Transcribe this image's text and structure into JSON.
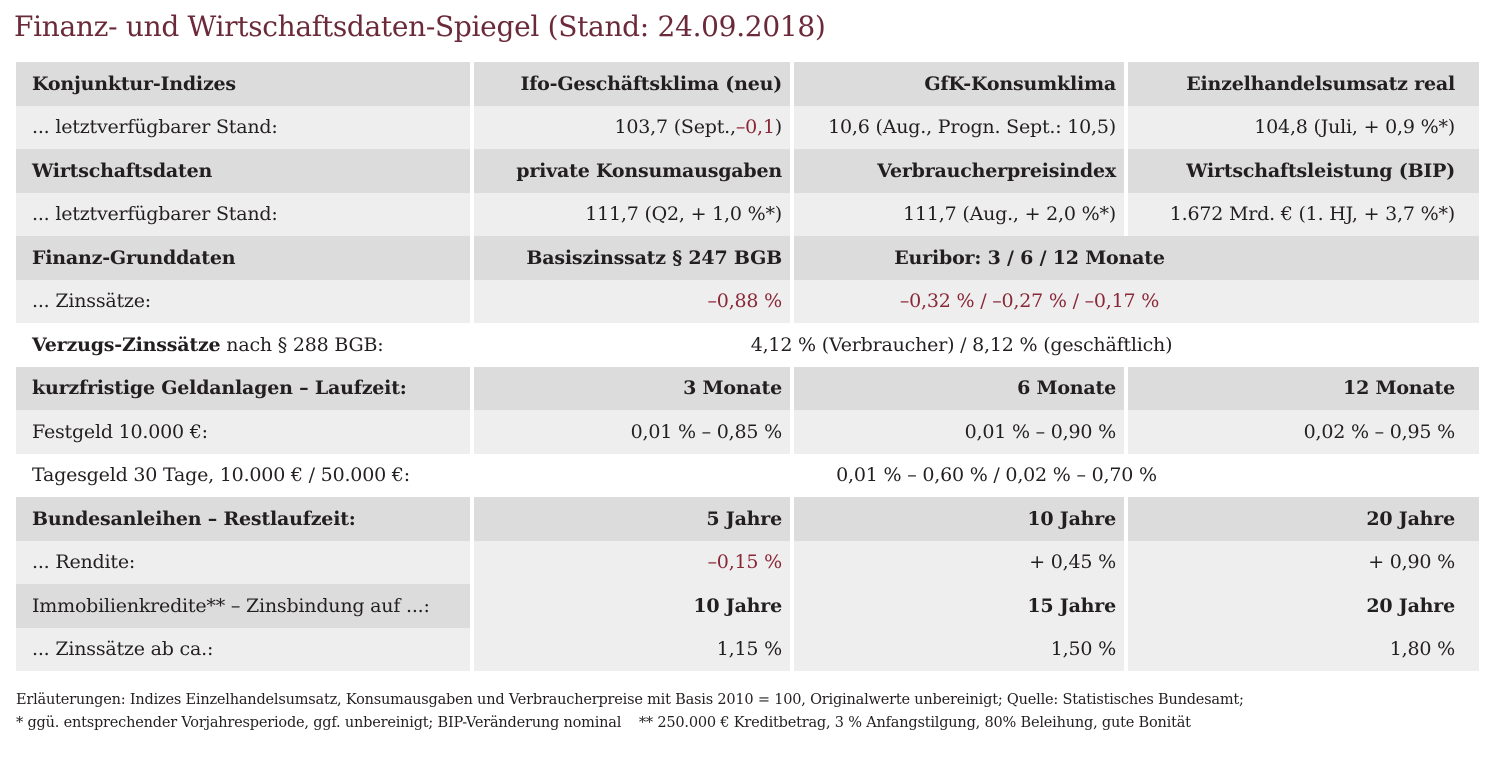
{
  "title": "Finanz- und Wirtschaftsdaten-Spiegel (Stand: 24.09.2018)",
  "colors": {
    "accent": "#6b2a3a",
    "negative_value": "#8a2737",
    "header_bg": "#dcdcdc",
    "row_bg": "#eeeeee"
  },
  "table": {
    "konjunktur": {
      "header": [
        "Konjunktur-Indizes",
        "Ifo-Geschäftsklima (neu)",
        "GfK-Konsumklima",
        "Einzelhandelsumsatz real"
      ],
      "label": "... letztverfügbarer Stand:",
      "ifo_value": "103,7 (Sept., ",
      "ifo_change": "–0,1",
      "ifo_close": ")",
      "gfk_value": "10,6 (Aug., Progn. Sept.: 10,5)",
      "einzelhandel_value": "104,8 (Juli, + 0,9 %*)"
    },
    "wirtschaft": {
      "header": [
        "Wirtschaftsdaten",
        "private Konsumausgaben",
        "Verbraucherpreisindex",
        "Wirtschaftsleistung (BIP)"
      ],
      "label": "... letztverfügbarer Stand:",
      "values": [
        "111,7 (Q2, + 1,0 %*)",
        "111,7 (Aug., + 2,0 %*)",
        "1.672 Mrd. € (1. HJ, + 3,7 %*)"
      ]
    },
    "finanz": {
      "header": [
        "Finanz-Grunddaten",
        "Basiszinssatz § 247 BGB",
        "Euribor: 3 / 6 / 12 Monate"
      ],
      "label": "... Zinssätze:",
      "values": [
        "–0,88 %",
        "–0,32 % / –0,27 % / –0,17 %"
      ]
    },
    "verzug": {
      "label_bold": "Verzugs-Zinssätze",
      "label_rest": " nach § 288 BGB:",
      "value": "4,12 % (Verbraucher) / 8,12 % (geschäftlich)"
    },
    "geldanlagen": {
      "header": [
        "kurzfristige Geldanlagen – Laufzeit:",
        "3 Monate",
        "6 Monate",
        "12 Monate"
      ],
      "festgeld_label": "Festgeld 10.000 €:",
      "festgeld_values": [
        "0,01 % – 0,85 %",
        "0,01 % – 0,90 %",
        "0,02 % – 0,95 %"
      ],
      "tagesgeld_label": "Tagesgeld 30 Tage, 10.000 € / 50.000 €:",
      "tagesgeld_value": "0,01 % – 0,60 % / 0,02 % – 0,70 %"
    },
    "anleihen": {
      "header": [
        "Bundesanleihen – Restlaufzeit:",
        "5 Jahre",
        "10 Jahre",
        "20 Jahre"
      ],
      "label": "... Rendite:",
      "values": [
        "–0,15 %",
        "+ 0,45 %",
        "+ 0,90 %"
      ]
    },
    "immobilien": {
      "header": [
        "Immobilienkredite** – Zinsbindung auf ...:",
        "10 Jahre",
        "15 Jahre",
        "20 Jahre"
      ],
      "label": "... Zinssätze ab ca.:",
      "values": [
        "1,15 %",
        "1,50 %",
        "1,80 %"
      ]
    }
  },
  "notes": [
    "Erläuterungen: Indizes Einzelhandelsumsatz, Konsumausgaben und Verbraucherpreise mit Basis 2010 = 100, Originalwerte unbereinigt; Quelle: Statistisches Bundesamt;",
    "* ggü. entsprechender Vorjahresperiode, ggf. unbereinigt; BIP-Veränderung nominal    ** 250.000 € Kreditbetrag, 3 % Anfangstilgung, 80% Beleihung, gute Bonität"
  ]
}
